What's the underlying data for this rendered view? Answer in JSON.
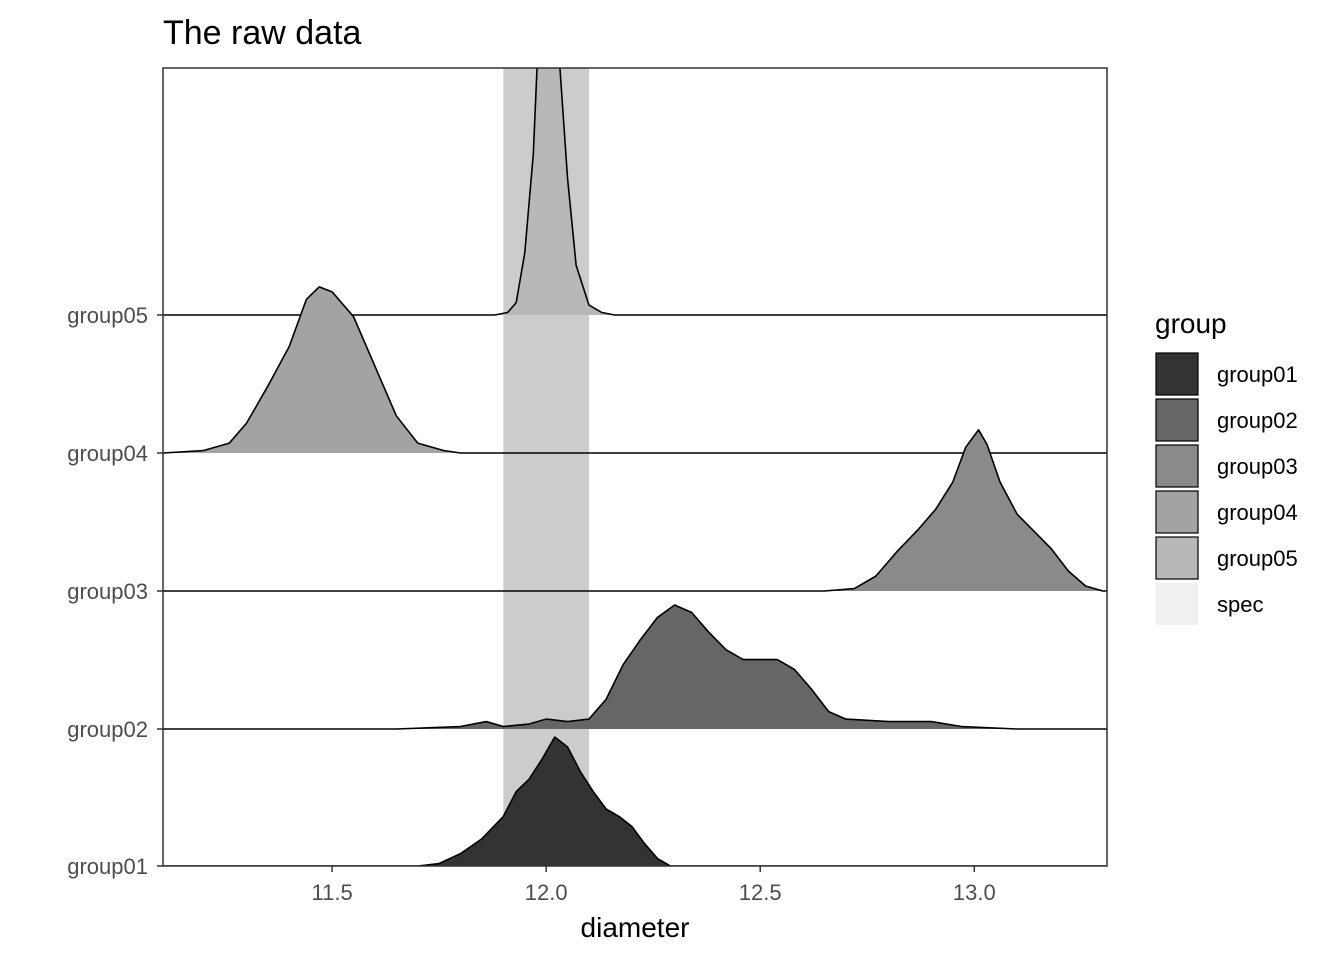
{
  "chart_data": {
    "type": "ridgeline",
    "title": "The raw data",
    "xlabel": "diameter",
    "ylabel": "",
    "xlim": [
      11.105,
      13.31
    ],
    "x_ticks": [
      11.5,
      12.0,
      12.5,
      13.0
    ],
    "x_tick_labels": [
      "11.5",
      "12.0",
      "12.5",
      "13.0"
    ],
    "categories": [
      "group01",
      "group02",
      "group03",
      "group04",
      "group05"
    ],
    "spec_band": [
      11.9,
      12.1
    ],
    "scale": 1.8,
    "series": [
      {
        "name": "group01",
        "color": "#333333",
        "points": [
          [
            11.7,
            0
          ],
          [
            11.75,
            0.01
          ],
          [
            11.8,
            0.05
          ],
          [
            11.85,
            0.11
          ],
          [
            11.9,
            0.2
          ],
          [
            11.93,
            0.3
          ],
          [
            11.96,
            0.35
          ],
          [
            11.99,
            0.43
          ],
          [
            12.02,
            0.52
          ],
          [
            12.05,
            0.48
          ],
          [
            12.08,
            0.38
          ],
          [
            12.11,
            0.3
          ],
          [
            12.14,
            0.23
          ],
          [
            12.17,
            0.2
          ],
          [
            12.2,
            0.16
          ],
          [
            12.23,
            0.09
          ],
          [
            12.26,
            0.03
          ],
          [
            12.29,
            0.0
          ]
        ]
      },
      {
        "name": "group02",
        "color": "#666666",
        "points": [
          [
            11.65,
            0
          ],
          [
            11.8,
            0.01
          ],
          [
            11.86,
            0.03
          ],
          [
            11.9,
            0.01
          ],
          [
            11.96,
            0.02
          ],
          [
            12.0,
            0.04
          ],
          [
            12.05,
            0.03
          ],
          [
            12.1,
            0.04
          ],
          [
            12.14,
            0.12
          ],
          [
            12.18,
            0.26
          ],
          [
            12.22,
            0.36
          ],
          [
            12.26,
            0.45
          ],
          [
            12.3,
            0.5
          ],
          [
            12.34,
            0.47
          ],
          [
            12.38,
            0.39
          ],
          [
            12.42,
            0.32
          ],
          [
            12.46,
            0.28
          ],
          [
            12.5,
            0.28
          ],
          [
            12.54,
            0.28
          ],
          [
            12.58,
            0.24
          ],
          [
            12.62,
            0.16
          ],
          [
            12.66,
            0.07
          ],
          [
            12.7,
            0.04
          ],
          [
            12.8,
            0.03
          ],
          [
            12.9,
            0.03
          ],
          [
            12.97,
            0.01
          ],
          [
            13.1,
            0
          ],
          [
            13.31,
            0
          ]
        ]
      },
      {
        "name": "group03",
        "color": "#8a8a8a",
        "points": [
          [
            12.65,
            0
          ],
          [
            12.72,
            0.01
          ],
          [
            12.77,
            0.06
          ],
          [
            12.82,
            0.16
          ],
          [
            12.87,
            0.25
          ],
          [
            12.91,
            0.33
          ],
          [
            12.95,
            0.44
          ],
          [
            12.98,
            0.58
          ],
          [
            13.01,
            0.65
          ],
          [
            13.03,
            0.59
          ],
          [
            13.06,
            0.44
          ],
          [
            13.1,
            0.31
          ],
          [
            13.14,
            0.24
          ],
          [
            13.18,
            0.17
          ],
          [
            13.22,
            0.08
          ],
          [
            13.26,
            0.02
          ],
          [
            13.3,
            0
          ]
        ]
      },
      {
        "name": "group04",
        "color": "#a3a3a3",
        "points": [
          [
            11.105,
            0
          ],
          [
            11.2,
            0.01
          ],
          [
            11.26,
            0.04
          ],
          [
            11.3,
            0.12
          ],
          [
            11.35,
            0.27
          ],
          [
            11.4,
            0.43
          ],
          [
            11.44,
            0.62
          ],
          [
            11.47,
            0.67
          ],
          [
            11.5,
            0.65
          ],
          [
            11.55,
            0.55
          ],
          [
            11.6,
            0.35
          ],
          [
            11.65,
            0.15
          ],
          [
            11.7,
            0.04
          ],
          [
            11.76,
            0.01
          ],
          [
            11.8,
            0
          ]
        ]
      },
      {
        "name": "group05",
        "color": "#b8b8b8",
        "points": [
          [
            11.88,
            0
          ],
          [
            11.91,
            0.01
          ],
          [
            11.93,
            0.05
          ],
          [
            11.95,
            0.25
          ],
          [
            11.97,
            0.65
          ],
          [
            11.98,
            1.05
          ],
          [
            11.99,
            1.48
          ],
          [
            12.0,
            1.65
          ],
          [
            12.01,
            1.62
          ],
          [
            12.02,
            1.43
          ],
          [
            12.03,
            1.05
          ],
          [
            12.05,
            0.55
          ],
          [
            12.07,
            0.2
          ],
          [
            12.1,
            0.04
          ],
          [
            12.13,
            0.01
          ],
          [
            12.16,
            0
          ]
        ]
      }
    ],
    "legend": {
      "title": "group",
      "position": "right",
      "entries": [
        {
          "label": "group01",
          "color": "#333333",
          "border": true
        },
        {
          "label": "group02",
          "color": "#666666",
          "border": true
        },
        {
          "label": "group03",
          "color": "#8a8a8a",
          "border": true
        },
        {
          "label": "group04",
          "color": "#a3a3a3",
          "border": true
        },
        {
          "label": "group05",
          "color": "#b8b8b8",
          "border": true
        },
        {
          "label": "spec",
          "color": "#f0f0f0",
          "border": false
        }
      ]
    },
    "spec_color": "#cccccc",
    "grid": false
  }
}
